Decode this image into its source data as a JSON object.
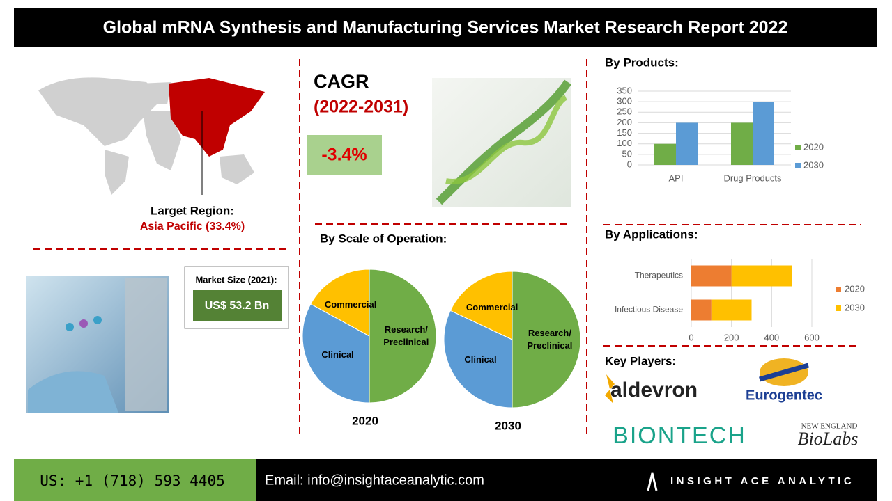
{
  "header": {
    "title": "Global mRNA Synthesis and Manufacturing Services Market Research Report 2022"
  },
  "region": {
    "label": "Larget Region:",
    "value": "Asia Pacific (33.4%)"
  },
  "cagr": {
    "label": "CAGR",
    "period": "(2022-2031)",
    "value": "-3.4%"
  },
  "market_size": {
    "label": "Market Size (2021):",
    "value": "US$ 53.2 Bn"
  },
  "sections": {
    "products": "By  Products:",
    "scale": "By  Scale of Operation:",
    "applications": "By Applications:",
    "players": "Key Players:"
  },
  "key_players": [
    "aldevron",
    "Eurogentec",
    "BIONTECH",
    "NEW ENGLAND",
    "BioLabs"
  ],
  "footer": {
    "phone": "US: +1 (718) 593 4405",
    "email": "Email: info@insightaceanalytic.com",
    "brand": "INSIGHT ACE ANALYTIC"
  },
  "chart_data": [
    {
      "type": "bar",
      "categories": [
        "API",
        "Drug Products"
      ],
      "series": [
        {
          "name": "2020",
          "color": "#70ad47",
          "values": [
            100,
            200
          ]
        },
        {
          "name": "2030",
          "color": "#5b9bd5",
          "values": [
            200,
            300
          ]
        }
      ],
      "ylim": [
        0,
        350
      ],
      "yticks": [
        0,
        50,
        100,
        150,
        200,
        250,
        300,
        350
      ],
      "grid": true,
      "legend": "right"
    },
    {
      "type": "stacked-barh",
      "categories": [
        "Therapeutics",
        "Infectious Disease"
      ],
      "series": [
        {
          "name": "2020",
          "color": "#ed7d31",
          "values": [
            200,
            100
          ]
        },
        {
          "name": "2030",
          "color": "#ffc000",
          "values": [
            300,
            200
          ]
        }
      ],
      "xlim": [
        0,
        600
      ],
      "xticks": [
        0,
        200,
        400,
        600
      ],
      "grid": true,
      "legend": "right"
    },
    {
      "type": "pie",
      "title": "2020",
      "categories": [
        "Research/ Preclinical",
        "Clinical",
        "Commercial"
      ],
      "values": [
        50,
        33,
        17
      ],
      "colors": [
        "#70ad47",
        "#5b9bd5",
        "#ffc000"
      ]
    },
    {
      "type": "pie",
      "title": "2030",
      "categories": [
        "Research/ Preclinical",
        "Clinical",
        "Commercial"
      ],
      "values": [
        50,
        32,
        18
      ],
      "colors": [
        "#70ad47",
        "#5b9bd5",
        "#ffc000"
      ]
    }
  ]
}
